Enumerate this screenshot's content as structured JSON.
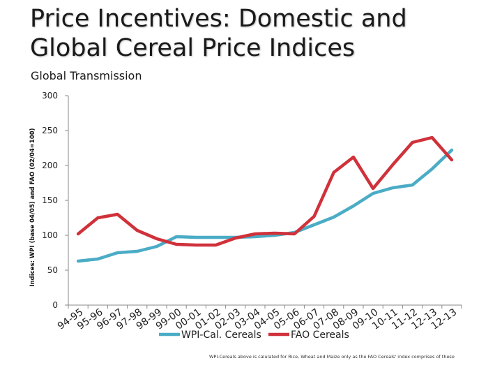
{
  "slide": {
    "title_line1": "Price Incentives: Domestic and",
    "title_line2": "Global Cereal Price Indices",
    "subtitle": "Global Transmission",
    "footnote": "WPI-Cereals above is calulated for Rice, Wheat and Maize only as the FAO Cereals' index comprises of these"
  },
  "chart_data": {
    "type": "line",
    "title": "Global Transmission",
    "xlabel": "",
    "ylabel": "Indices: WPI (base 04/05) and FAO (02/04=100)",
    "ylim": [
      0,
      300
    ],
    "yticks": [
      0,
      50,
      100,
      150,
      200,
      250,
      300
    ],
    "x": [
      "94-95",
      "95-96",
      "96-97",
      "97-98",
      "98-99",
      "99-00",
      "00-01",
      "01-02",
      "02-03",
      "03-04",
      "04-05",
      "05-06",
      "06-07",
      "07-08",
      "08-09",
      "09-10",
      "10-11",
      "11-12",
      "12-13",
      "12-13"
    ],
    "series": [
      {
        "name": "WPI-Cal. Cereals",
        "color": "#4bacc6",
        "values": [
          63,
          66,
          75,
          77,
          84,
          98,
          97,
          97,
          97,
          98,
          100,
          104,
          115,
          126,
          142,
          160,
          168,
          172,
          195,
          222
        ]
      },
      {
        "name": "FAO Cereals",
        "color": "#d0313a",
        "values": [
          102,
          125,
          130,
          107,
          95,
          87,
          86,
          86,
          96,
          102,
          103,
          102,
          127,
          190,
          212,
          167,
          201,
          233,
          240,
          208
        ]
      }
    ],
    "legend": "bottom-center"
  }
}
